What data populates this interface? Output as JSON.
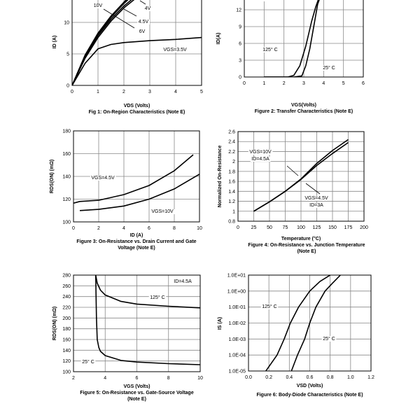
{
  "chart_data": [
    {
      "type": "line",
      "xlabel": "VDS (Volts)",
      "ylabel": "ID (A)",
      "caption": [
        "Fig 1: On-Region Characteristics (Note E)"
      ],
      "xlim": [
        0,
        5
      ],
      "ylim": [
        0,
        15
      ],
      "xticks": [
        0,
        1,
        2,
        3,
        4,
        5
      ],
      "yticks": [
        0,
        5,
        10
      ],
      "grid": true,
      "yscale": "linear",
      "series": [
        {
          "name": "10V",
          "x": [
            0,
            0.5,
            1,
            1.5,
            2,
            2.3
          ],
          "y": [
            0,
            4.8,
            8.3,
            11,
            13.2,
            14.5
          ]
        },
        {
          "name": "6V",
          "x": [
            0,
            0.5,
            1,
            1.5,
            2,
            2.4
          ],
          "y": [
            0,
            4.7,
            8.1,
            10.8,
            13,
            14.5
          ]
        },
        {
          "name": "4.5V",
          "x": [
            0,
            0.5,
            1,
            1.5,
            2,
            2.5
          ],
          "y": [
            0,
            4.5,
            7.9,
            10.5,
            12.6,
            14.3
          ]
        },
        {
          "name": "4V",
          "x": [
            0,
            0.5,
            1,
            1.5,
            2,
            2.6
          ],
          "y": [
            0,
            4.3,
            7.6,
            10.2,
            12.3,
            14.3
          ]
        },
        {
          "name": "VGS=3.5V",
          "x": [
            0,
            0.5,
            1,
            1.5,
            2,
            3,
            4,
            5
          ],
          "y": [
            0,
            3.5,
            5.8,
            6.5,
            6.8,
            7.1,
            7.3,
            7.6
          ]
        }
      ],
      "annotations": [
        "10V",
        "4V",
        "4.5V",
        "6V",
        "VGS=3.5V"
      ]
    },
    {
      "type": "line",
      "xlabel": "VGS(Volts)",
      "ylabel": "ID(A)",
      "caption": [
        "Figure 2: Transfer Characteristics (Note E)"
      ],
      "xlim": [
        0,
        6
      ],
      "ylim": [
        0,
        15
      ],
      "xticks": [
        0,
        1,
        2,
        3,
        4,
        5,
        6
      ],
      "yticks": [
        0,
        3,
        6,
        9,
        12
      ],
      "grid": true,
      "yscale": "linear",
      "series": [
        {
          "name": "125° C",
          "x": [
            1,
            2.2,
            2.5,
            2.8,
            3.1,
            3.4,
            3.6,
            3.8
          ],
          "y": [
            0,
            0,
            0.3,
            2,
            5.5,
            10,
            12.5,
            14.5
          ]
        },
        {
          "name": "25° C",
          "x": [
            1,
            2.5,
            2.9,
            3.1,
            3.3,
            3.5,
            3.7,
            3.85
          ],
          "y": [
            0,
            0,
            0.2,
            2,
            5,
            9,
            13,
            14.5
          ]
        }
      ],
      "annotations": [
        "VDS=5V",
        "125° C",
        "25° C"
      ]
    },
    {
      "type": "line",
      "xlabel": "ID (A)",
      "ylabel": "RDS(ON) (mΩ)",
      "caption": [
        "Figure 3: On-Resistance vs. Drain Current and Gate",
        "Voltage (Note E)"
      ],
      "xlim": [
        0,
        10
      ],
      "ylim": [
        100,
        180
      ],
      "xticks": [
        0,
        2,
        4,
        6,
        8,
        10
      ],
      "yticks": [
        100,
        120,
        140,
        160,
        180
      ],
      "grid": true,
      "yscale": "linear",
      "series": [
        {
          "name": "VGS=4.5V",
          "x": [
            0,
            0.5,
            2,
            4,
            6,
            8,
            9.5
          ],
          "y": [
            116.5,
            118,
            119,
            124,
            132,
            145,
            159
          ]
        },
        {
          "name": "VGS=10V",
          "x": [
            0.5,
            2,
            4,
            6,
            8,
            10
          ],
          "y": [
            110,
            111,
            114,
            120,
            129,
            142
          ]
        }
      ],
      "annotations": [
        "VGS=4.5V",
        "VGS=10V"
      ]
    },
    {
      "type": "line",
      "xlabel": "Temperature (°C)",
      "ylabel": "Normalized On-Resistance",
      "caption": [
        "Figure 4: On-Resistance vs. Junction Temperature",
        "(Note E)"
      ],
      "xlim": [
        0,
        200
      ],
      "ylim": [
        0.8,
        2.6
      ],
      "xticks": [
        0,
        25,
        50,
        75,
        100,
        125,
        150,
        175,
        200
      ],
      "yticks": [
        0.8,
        1,
        1.2,
        1.4,
        1.6,
        1.8,
        2,
        2.2,
        2.4,
        2.6
      ],
      "grid": true,
      "yscale": "linear",
      "series": [
        {
          "name": "VGS=10V ID=4.5A",
          "x": [
            25,
            50,
            75,
            100,
            125,
            150,
            175
          ],
          "y": [
            1,
            1.19,
            1.4,
            1.65,
            1.96,
            2.22,
            2.44
          ]
        },
        {
          "name": "VGS=4.5V ID=3A",
          "x": [
            25,
            50,
            75,
            100,
            125,
            150,
            175
          ],
          "y": [
            1,
            1.19,
            1.4,
            1.64,
            1.92,
            2.16,
            2.38
          ]
        }
      ],
      "annotations": [
        "VGS=10V",
        "ID=4.5A",
        "VGS=4.5V",
        "ID=3A"
      ]
    },
    {
      "type": "line",
      "xlabel": "VGS (Volts)",
      "ylabel": "RDS(ON) (mΩ)",
      "caption": [
        "Figure 5: On-Resistance vs. Gate-Source Voltage",
        "(Note E)"
      ],
      "xlim": [
        2,
        10
      ],
      "ylim": [
        100,
        280
      ],
      "xticks": [
        2,
        4,
        6,
        8,
        10
      ],
      "yticks": [
        100,
        120,
        140,
        160,
        180,
        200,
        220,
        240,
        260,
        280
      ],
      "grid": true,
      "yscale": "linear",
      "series": [
        {
          "name": "125° C",
          "x": [
            3.4,
            3.5,
            3.7,
            4,
            5,
            6,
            8,
            10
          ],
          "y": [
            280,
            265,
            252,
            243,
            231,
            226,
            222,
            219
          ]
        },
        {
          "name": "25° C",
          "x": [
            3.4,
            3.45,
            3.5,
            3.6,
            3.7,
            4,
            5,
            6,
            8,
            10
          ],
          "y": [
            280,
            200,
            160,
            145,
            138,
            130,
            121,
            118,
            115,
            113
          ]
        }
      ],
      "annotations": [
        "ID=4.5A",
        "125° C",
        "25° C"
      ]
    },
    {
      "type": "line",
      "xlabel": "VSD (Volts)",
      "ylabel": "IS (A)",
      "caption": [
        "Figure 6: Body-Diode Characteristics (Note E)"
      ],
      "xlim": [
        0,
        1.2
      ],
      "ylim": [
        1e-05,
        10
      ],
      "xticks": [
        0,
        0.2,
        0.4,
        0.6,
        0.8,
        1,
        1.2
      ],
      "xticklabels": [
        "0.0",
        "0.2",
        "0.4",
        "0.6",
        "0.8",
        "1.0",
        "1.2"
      ],
      "yticks": [
        1e-05,
        0.0001,
        0.001,
        0.01,
        0.1,
        1,
        10
      ],
      "yticklabels": [
        "1.0E-05",
        "1.0E-04",
        "1.0E-03",
        "1.0E-02",
        "1.0E-01",
        "1.0E+00",
        "1.0E+01"
      ],
      "grid": true,
      "yscale": "log",
      "series": [
        {
          "name": "125° C",
          "x": [
            0.17,
            0.28,
            0.35,
            0.41,
            0.49,
            0.6,
            0.7,
            0.8
          ],
          "y": [
            1e-05,
            0.0001,
            0.001,
            0.01,
            0.1,
            1,
            4,
            10
          ]
        },
        {
          "name": "25° C",
          "x": [
            0.42,
            0.48,
            0.55,
            0.6,
            0.66,
            0.75,
            0.82,
            0.9
          ],
          "y": [
            1e-05,
            0.0001,
            0.001,
            0.01,
            0.1,
            1,
            3,
            10
          ]
        }
      ],
      "annotations": [
        "125° C",
        "25° C"
      ]
    }
  ]
}
